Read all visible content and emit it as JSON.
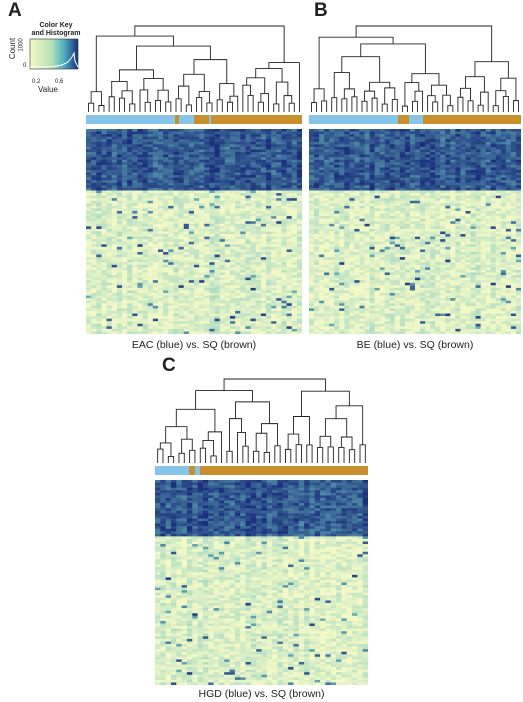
{
  "panels": [
    {
      "letter": "A",
      "caption": "EAC (blue) vs. SQ (brown)"
    },
    {
      "letter": "B",
      "caption": "BE (blue) vs. SQ (brown)"
    },
    {
      "letter": "C",
      "caption": "HGD (blue) vs. SQ (brown)"
    }
  ],
  "color_key": {
    "title_line1": "Color Key",
    "title_line2": "and Histogram",
    "xlabel": "Value",
    "ylabel": "Count",
    "x_ticks": [
      "0.2",
      "0.6"
    ],
    "y_ticks": [
      "0",
      "1000"
    ]
  },
  "colors": {
    "blue_group": "#86c5e8",
    "brown_group": "#c8902c",
    "heat_low": "#f2f9c7",
    "heat_mid": "#6ec2bf",
    "heat_high": "#1b2f7c"
  }
}
